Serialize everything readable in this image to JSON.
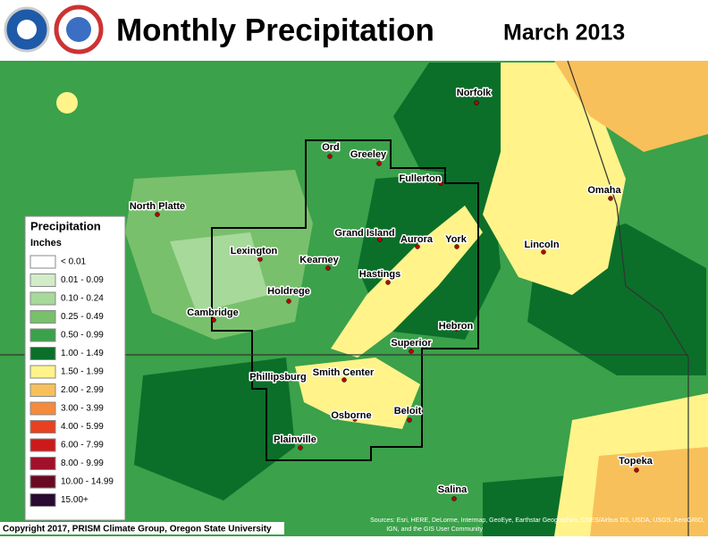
{
  "header": {
    "title": "Monthly Precipitation",
    "period": "March 2013"
  },
  "legend": {
    "title": "Precipitation",
    "unit": "Inches",
    "entries": [
      {
        "label": "< 0.01",
        "color": "#ffffff"
      },
      {
        "label": "0.01 - 0.09",
        "color": "#d2ecc8"
      },
      {
        "label": "0.10 - 0.24",
        "color": "#a6d99a"
      },
      {
        "label": "0.25 - 0.49",
        "color": "#78c06c"
      },
      {
        "label": "0.50 - 0.99",
        "color": "#3ba14a"
      },
      {
        "label": "1.00 - 1.49",
        "color": "#0b6f2a"
      },
      {
        "label": "1.50 - 1.99",
        "color": "#fff38a"
      },
      {
        "label": "2.00 - 2.99",
        "color": "#f8c05a"
      },
      {
        "label": "3.00 - 3.99",
        "color": "#f58a3c"
      },
      {
        "label": "4.00 - 5.99",
        "color": "#e84020"
      },
      {
        "label": "6.00 - 7.99",
        "color": "#cc1a1a"
      },
      {
        "label": "8.00 - 9.99",
        "color": "#a0102a"
      },
      {
        "label": "10.00 - 14.99",
        "color": "#6a0a22"
      },
      {
        "label": "15.00+",
        "color": "#2a0a30"
      }
    ]
  },
  "cities": [
    "Norfolk",
    "Ord",
    "Greeley",
    "Fullerton",
    "North Platte",
    "Omaha",
    "Grand Island",
    "Aurora",
    "York",
    "Lincoln",
    "Lexington",
    "Kearney",
    "Hastings",
    "Holdrege",
    "Cambridge",
    "Hebron",
    "Superior",
    "Phillipsburg",
    "Smith Center",
    "Osborne",
    "Beloit",
    "Plainville",
    "Topeka",
    "Salina"
  ],
  "footer": {
    "copyright": "Copyright 2017, PRISM Climate Group, Oregon State University",
    "sources": [
      "Sources: Esri, HERE, DeLorme, Intermap, GeoEye, Earthstar Geographics, CNES/Airbus DS, USDA, USGS, AeroGRID,",
      "IGN, and the GIS User Community"
    ]
  }
}
